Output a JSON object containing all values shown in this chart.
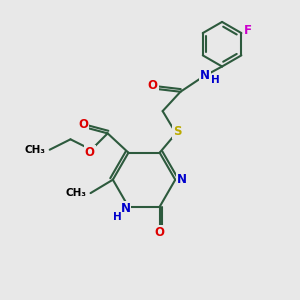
{
  "bg_color": "#e8e8e8",
  "bond_color": "#2d5a3d",
  "bond_width": 1.5,
  "atom_colors": {
    "O": "#dd0000",
    "N": "#0000cc",
    "S": "#bbaa00",
    "F": "#cc00cc",
    "C": "#000000",
    "H": "#0000cc"
  },
  "font_size": 8.5,
  "fig_size": [
    3.0,
    3.0
  ],
  "dpi": 100,
  "xlim": [
    0,
    10
  ],
  "ylim": [
    0,
    10
  ]
}
